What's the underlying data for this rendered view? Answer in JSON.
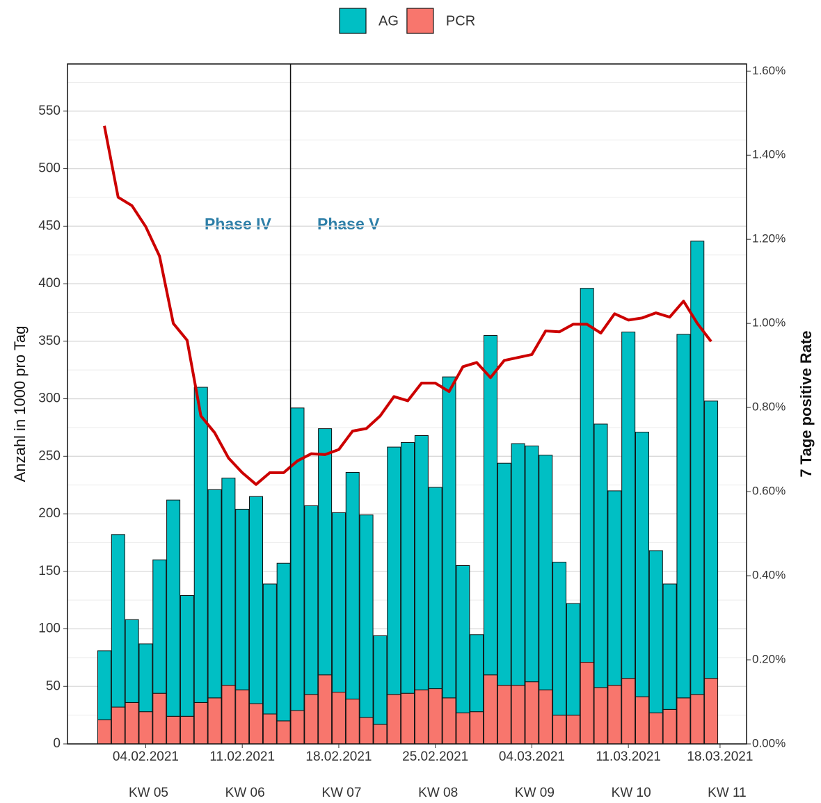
{
  "chart_data": {
    "type": "stacked-bar-line",
    "categories": [
      null,
      null,
      null,
      "04.02.2021",
      null,
      null,
      null,
      null,
      null,
      null,
      "11.02.2021",
      null,
      null,
      null,
      null,
      null,
      null,
      "18.02.2021",
      null,
      null,
      null,
      null,
      null,
      null,
      "25.02.2021",
      null,
      null,
      null,
      null,
      null,
      null,
      "04.03.2021",
      null,
      null,
      null,
      null,
      null,
      null,
      "11.03.2021",
      null,
      null,
      null,
      null,
      null,
      null
    ],
    "xtick_after_last": "18.03.2021",
    "week_labels": [
      "KW 05",
      "KW 06",
      "KW 07",
      "KW 08",
      "KW 09",
      "KW 10",
      "KW 11"
    ],
    "series": [
      {
        "name": "AG",
        "color": "#00BFC4",
        "values": [
          60,
          150,
          72,
          59,
          116,
          188,
          105,
          274,
          181,
          180,
          157,
          180,
          113,
          137,
          263,
          164,
          214,
          156,
          197,
          176,
          77,
          215,
          218,
          221,
          175,
          279,
          128,
          67,
          295,
          193,
          210,
          205,
          204,
          133,
          97,
          325,
          229,
          169,
          301,
          230,
          141,
          109,
          316,
          394,
          241
        ]
      },
      {
        "name": "PCR",
        "color": "#F8766D",
        "values": [
          21,
          32,
          36,
          28,
          44,
          24,
          24,
          36,
          40,
          51,
          47,
          35,
          26,
          20,
          29,
          43,
          60,
          45,
          39,
          23,
          17,
          43,
          44,
          47,
          48,
          40,
          27,
          28,
          60,
          51,
          51,
          54,
          47,
          25,
          25,
          71,
          49,
          51,
          57,
          41,
          27,
          30,
          40,
          43,
          57
        ]
      },
      {
        "name": "7 Tage positive Rate",
        "color": "#CC0000",
        "axis": "y2",
        "values": [
          1.47,
          1.3,
          1.28,
          1.23,
          1.16,
          1.0,
          0.96,
          0.78,
          0.74,
          0.68,
          0.645,
          0.617,
          0.645,
          0.645,
          0.673,
          0.69,
          0.688,
          0.7,
          0.744,
          0.75,
          0.78,
          0.826,
          0.816,
          0.858,
          0.858,
          0.838,
          0.897,
          0.907,
          0.871,
          0.912,
          0.919,
          0.926,
          0.982,
          0.98,
          0.998,
          0.998,
          0.977,
          1.023,
          1.008,
          1.013,
          1.025,
          1.015,
          1.053,
          1.0,
          0.957
        ]
      }
    ],
    "ylabel": "Anzahl in 1000 pro Tag",
    "y2label": "7 Tage positive Rate",
    "ylim": [
      0,
      591
    ],
    "yticks": [
      0,
      50,
      100,
      150,
      200,
      250,
      300,
      350,
      400,
      450,
      500,
      550
    ],
    "y2lim": [
      0,
      1.617
    ],
    "y2ticks": [
      {
        "value": 0,
        "label": "0.00%"
      },
      {
        "value": 0.2,
        "label": "0.20%"
      },
      {
        "value": 0.4,
        "label": "0.40%"
      },
      {
        "value": 0.6,
        "label": "0.60%"
      },
      {
        "value": 0.8,
        "label": "0.80%"
      },
      {
        "value": 1.0,
        "label": "1.00%"
      },
      {
        "value": 1.2,
        "label": "1.20%"
      },
      {
        "value": 1.4,
        "label": "1.40%"
      },
      {
        "value": 1.6,
        "label": "1.60%"
      }
    ],
    "annotations": [
      "Phase IV",
      "Phase V"
    ],
    "grid": true
  }
}
